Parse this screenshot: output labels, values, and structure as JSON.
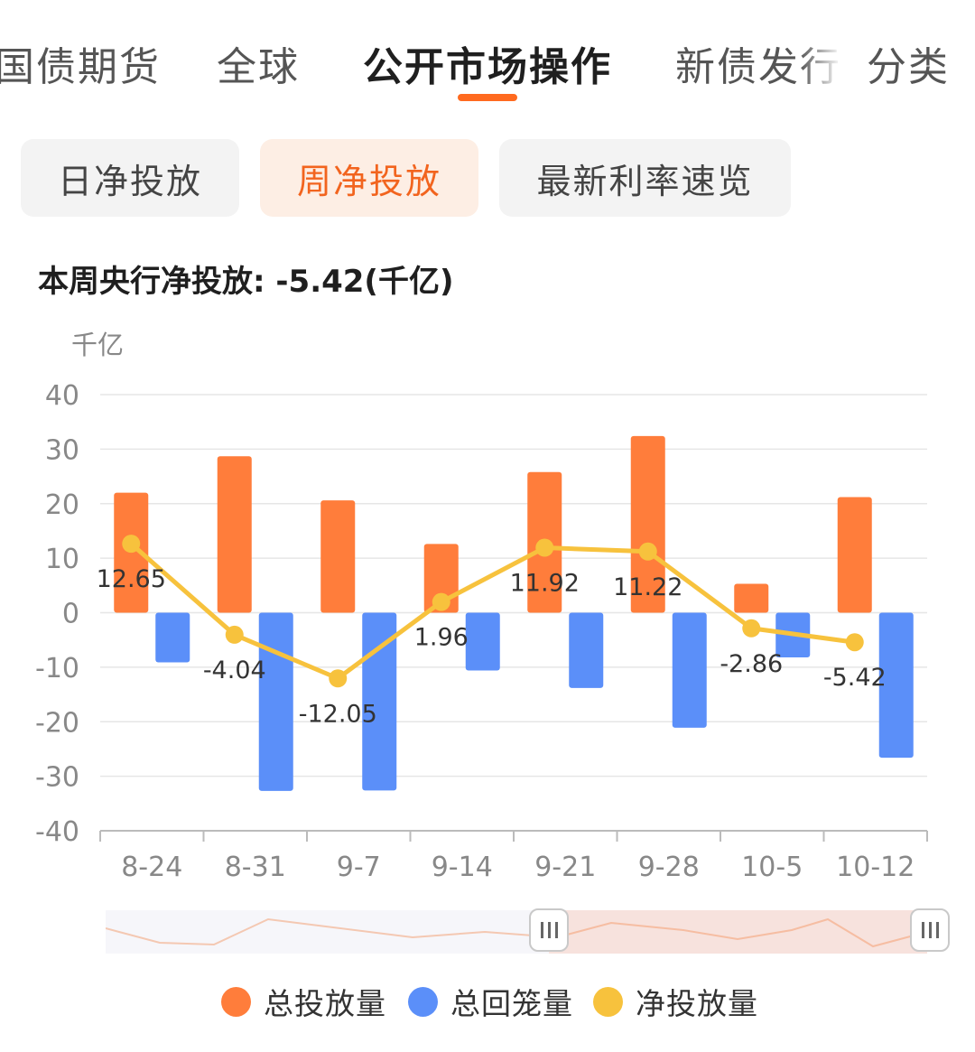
{
  "tabs": [
    {
      "label": "国债期货"
    },
    {
      "label": "全球"
    },
    {
      "label": "公开市场操作"
    },
    {
      "label": "新债发行"
    },
    {
      "label": "分类"
    }
  ],
  "active_tab": "公开市场操作",
  "subtabs": [
    {
      "label": "日净投放"
    },
    {
      "label": "周净投放"
    },
    {
      "label": "最新利率速览"
    }
  ],
  "active_subtab": "周净投放",
  "summary": "本周央行净投放: -5.42(千亿)",
  "colors": {
    "accent": "#ff6a1f",
    "injection": "#ff7d3b",
    "withdrawal": "#5b8ff9",
    "net": "#f7c23d"
  },
  "chart_data": {
    "type": "bar",
    "ylabel": "千亿",
    "ylim": [
      -40,
      40
    ],
    "yticks": [
      40,
      30,
      20,
      10,
      0,
      -10,
      -20,
      -30,
      -40
    ],
    "grid": true,
    "categories": [
      "8-24",
      "8-31",
      "9-7",
      "9-14",
      "9-21",
      "9-28",
      "10-5",
      "10-12"
    ],
    "series": [
      {
        "name": "总投放量",
        "type": "bar",
        "values": [
          22.0,
          28.7,
          20.6,
          12.6,
          25.8,
          32.4,
          5.3,
          21.2
        ]
      },
      {
        "name": "总回笼量",
        "type": "bar",
        "values": [
          -9.1,
          -32.7,
          -32.6,
          -10.6,
          -13.8,
          -21.1,
          -8.2,
          -26.6
        ]
      },
      {
        "name": "净投放量",
        "type": "line",
        "values": [
          12.65,
          -4.04,
          -12.05,
          1.96,
          11.92,
          11.22,
          -2.86,
          -5.42
        ],
        "labels": [
          "12.65",
          "-4.04",
          "-12.05",
          "1.96",
          "11.92",
          "11.22",
          "-2.86",
          "-5.42"
        ]
      }
    ],
    "legend_position": "bottom"
  },
  "legend": [
    {
      "label": "总投放量",
      "color": "#ff7d3b"
    },
    {
      "label": "总回笼量",
      "color": "#5b8ff9"
    },
    {
      "label": "净投放量",
      "color": "#f7c23d"
    }
  ],
  "slider": {
    "handle_left_icon": "grip-icon",
    "handle_right_icon": "grip-icon"
  }
}
